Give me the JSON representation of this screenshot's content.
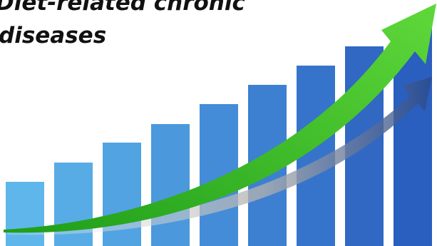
{
  "title_lines": [
    "Diet-related chronic",
    "diseases"
  ]
}
